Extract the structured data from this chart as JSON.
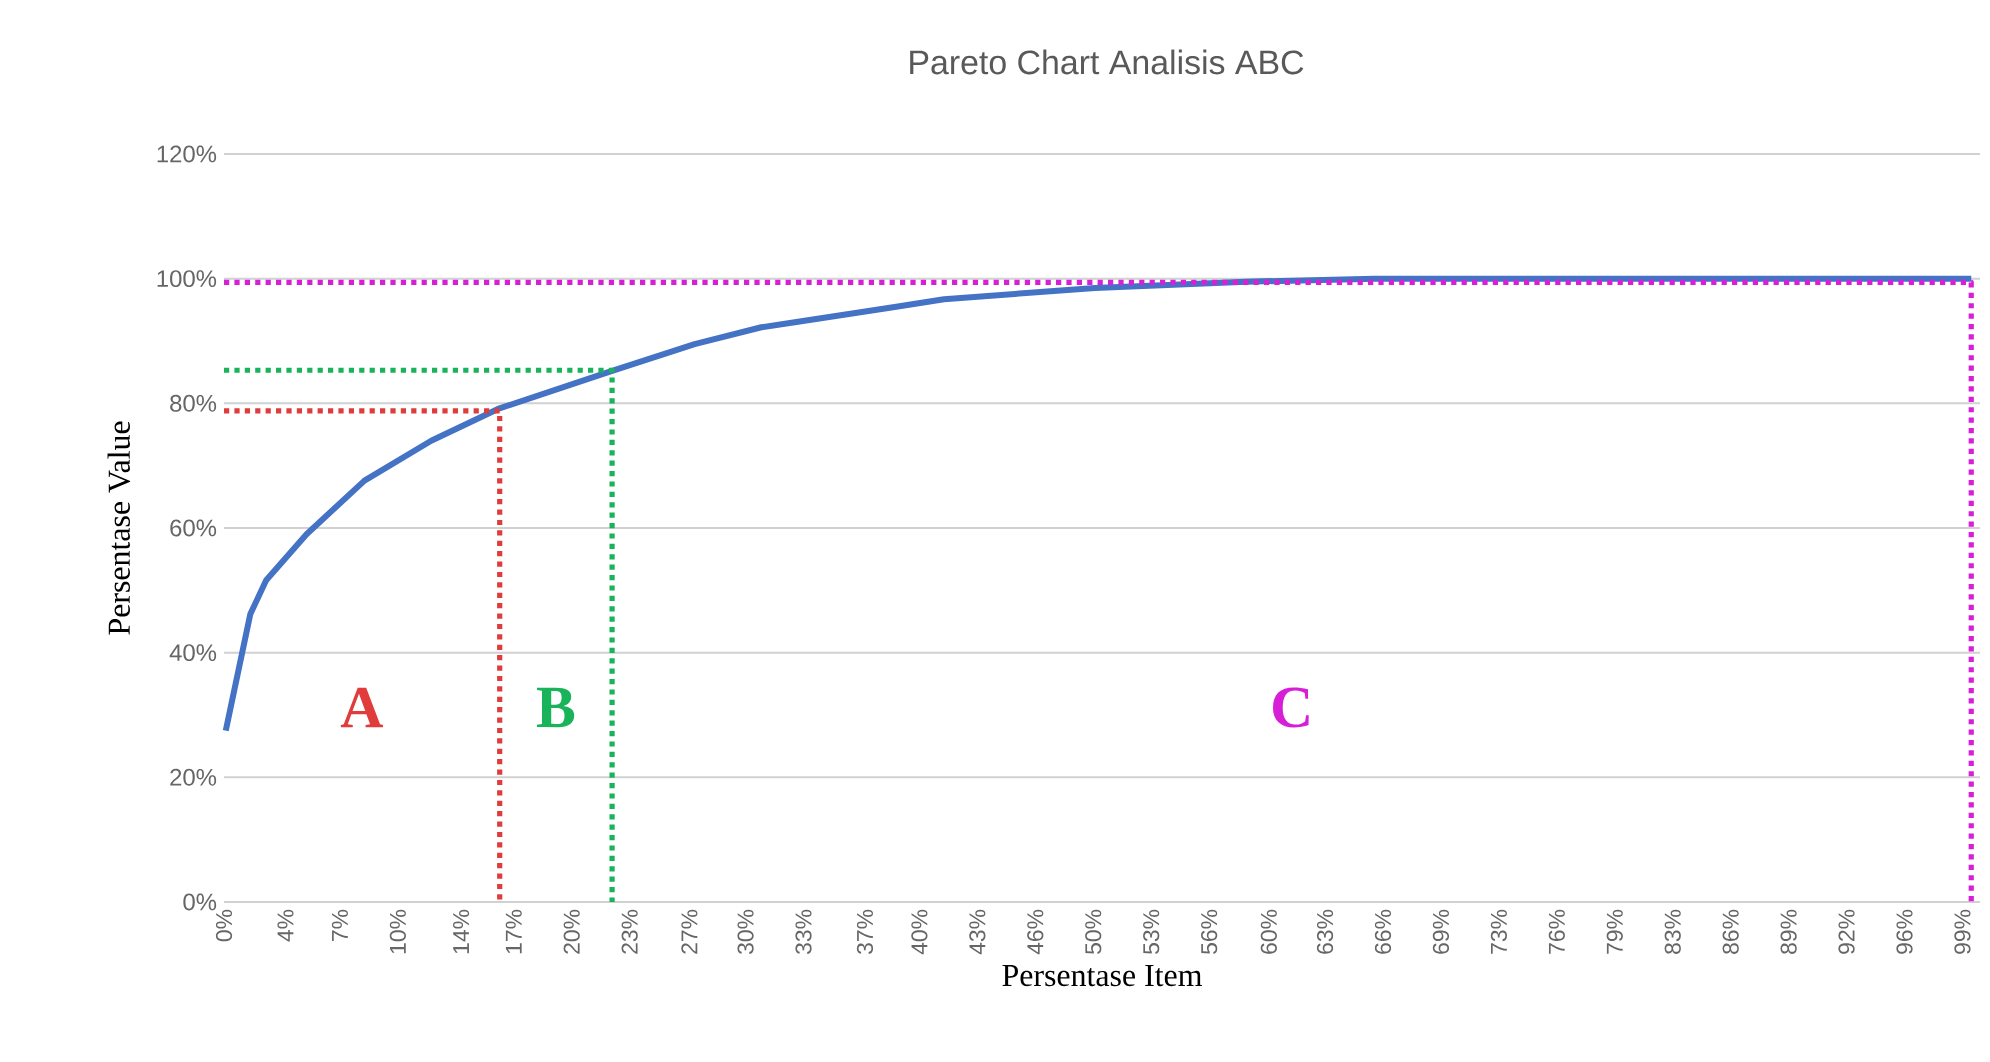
{
  "chart_data": {
    "type": "line",
    "title": "Pareto Chart Analisis ABC",
    "xlabel": "Persentase Item",
    "ylabel": "Persentase Value",
    "xlim": [
      0,
      100
    ],
    "ylim": [
      0,
      120
    ],
    "xticks": [
      {
        "value": 0,
        "label": "0%"
      },
      {
        "value": 3.5,
        "label": "4%"
      },
      {
        "value": 6.6,
        "label": "7%"
      },
      {
        "value": 9.9,
        "label": "10%"
      },
      {
        "value": 13.5,
        "label": "14%"
      },
      {
        "value": 16.5,
        "label": "17%"
      },
      {
        "value": 19.8,
        "label": "20%"
      },
      {
        "value": 23.1,
        "label": "23%"
      },
      {
        "value": 26.5,
        "label": "27%"
      },
      {
        "value": 29.7,
        "label": "30%"
      },
      {
        "value": 33,
        "label": "33%"
      },
      {
        "value": 36.5,
        "label": "37%"
      },
      {
        "value": 39.6,
        "label": "40%"
      },
      {
        "value": 42.9,
        "label": "43%"
      },
      {
        "value": 46.2,
        "label": "46%"
      },
      {
        "value": 49.5,
        "label": "50%"
      },
      {
        "value": 52.8,
        "label": "53%"
      },
      {
        "value": 56.1,
        "label": "56%"
      },
      {
        "value": 59.5,
        "label": "60%"
      },
      {
        "value": 62.7,
        "label": "63%"
      },
      {
        "value": 66,
        "label": "66%"
      },
      {
        "value": 69.3,
        "label": "69%"
      },
      {
        "value": 72.6,
        "label": "73%"
      },
      {
        "value": 75.9,
        "label": "76%"
      },
      {
        "value": 79.2,
        "label": "79%"
      },
      {
        "value": 82.5,
        "label": "83%"
      },
      {
        "value": 85.8,
        "label": "86%"
      },
      {
        "value": 89.1,
        "label": "89%"
      },
      {
        "value": 92.4,
        "label": "92%"
      },
      {
        "value": 95.7,
        "label": "96%"
      },
      {
        "value": 99,
        "label": "99%"
      }
    ],
    "yticks": [
      {
        "value": 0,
        "label": "0%"
      },
      {
        "value": 20,
        "label": "20%"
      },
      {
        "value": 40,
        "label": "40%"
      },
      {
        "value": 60,
        "label": "60%"
      },
      {
        "value": 80,
        "label": "80%"
      },
      {
        "value": 100,
        "label": "100%"
      },
      {
        "value": 120,
        "label": "120%"
      }
    ],
    "grid": "y",
    "marker": "none",
    "line_style": "solid",
    "series": [
      {
        "color": "#4472c4",
        "x": [
          0.1,
          1.5,
          2.4,
          4.7,
          8.0,
          11.8,
          15.6,
          22.1,
          26.8,
          30.6,
          32.5,
          38.1,
          41.0,
          49.6,
          58.2,
          65.5,
          99.5
        ],
        "values": [
          27.5,
          46.2,
          51.6,
          59.0,
          67.6,
          74.0,
          79.1,
          85.2,
          89.5,
          92.2,
          93.0,
          95.4,
          96.7,
          98.5,
          99.5,
          100,
          100
        ]
      },
      {
        "color": "#e03c3c",
        "line_style": "dotted",
        "x": [
          0,
          15.7,
          15.7
        ],
        "values": [
          78.8,
          78.8,
          0
        ]
      },
      {
        "color": "#19b35a",
        "line_style": "dotted",
        "x": [
          0,
          22.1,
          22.1
        ],
        "values": [
          85.3,
          85.3,
          0
        ]
      },
      {
        "color": "#d81fd8",
        "line_style": "dotted",
        "x": [
          0,
          99.5,
          99.5
        ],
        "values": [
          99.4,
          99.4,
          0
        ]
      }
    ],
    "annotations": [
      "A",
      "B",
      "C"
    ]
  }
}
